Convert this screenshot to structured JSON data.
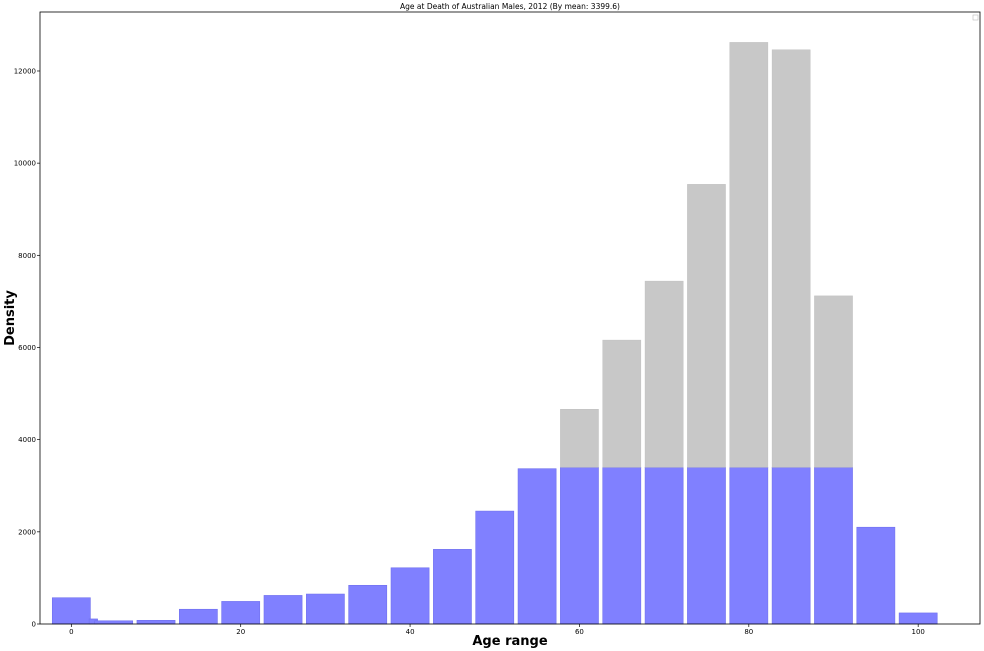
{
  "chart_data": {
    "type": "bar",
    "title": "Age at Death of Australian Males, 2012 (By mean: 3399.6)",
    "xlabel": "Age range",
    "ylabel": "Density",
    "mean": 3399.6,
    "xlim": [
      -3.7,
      107.3
    ],
    "ylim": [
      0,
      13280
    ],
    "xticks": [
      0,
      20,
      40,
      60,
      80,
      100
    ],
    "yticks": [
      0,
      2000,
      4000,
      6000,
      8000,
      10000,
      12000
    ],
    "legend": "top-right (empty)",
    "grid": false,
    "colors": {
      "capped": "#8080ff",
      "excess": "#c8c8c8",
      "edge": "#7070ee"
    },
    "bars": [
      {
        "x": 0,
        "width": 4.5,
        "value": 570
      },
      {
        "x": 2.6,
        "width": 1.0,
        "value": 110
      },
      {
        "x": 5,
        "width": 4.5,
        "value": 70
      },
      {
        "x": 10,
        "width": 4.5,
        "value": 80
      },
      {
        "x": 15,
        "width": 4.5,
        "value": 320
      },
      {
        "x": 20,
        "width": 4.5,
        "value": 490
      },
      {
        "x": 25,
        "width": 4.5,
        "value": 620
      },
      {
        "x": 30,
        "width": 4.5,
        "value": 650
      },
      {
        "x": 35,
        "width": 4.5,
        "value": 840
      },
      {
        "x": 40,
        "width": 4.5,
        "value": 1220
      },
      {
        "x": 45,
        "width": 4.5,
        "value": 1620
      },
      {
        "x": 50,
        "width": 4.5,
        "value": 2450
      },
      {
        "x": 55,
        "width": 4.5,
        "value": 3370
      },
      {
        "x": 60,
        "width": 4.5,
        "value": 4660
      },
      {
        "x": 65,
        "width": 4.5,
        "value": 6160
      },
      {
        "x": 70,
        "width": 4.5,
        "value": 7440
      },
      {
        "x": 75,
        "width": 4.5,
        "value": 9540
      },
      {
        "x": 80,
        "width": 4.5,
        "value": 12620
      },
      {
        "x": 85,
        "width": 4.5,
        "value": 12460
      },
      {
        "x": 90,
        "width": 4.5,
        "value": 7120
      },
      {
        "x": 95,
        "width": 4.5,
        "value": 2100
      },
      {
        "x": 100,
        "width": 4.5,
        "value": 240
      }
    ]
  }
}
